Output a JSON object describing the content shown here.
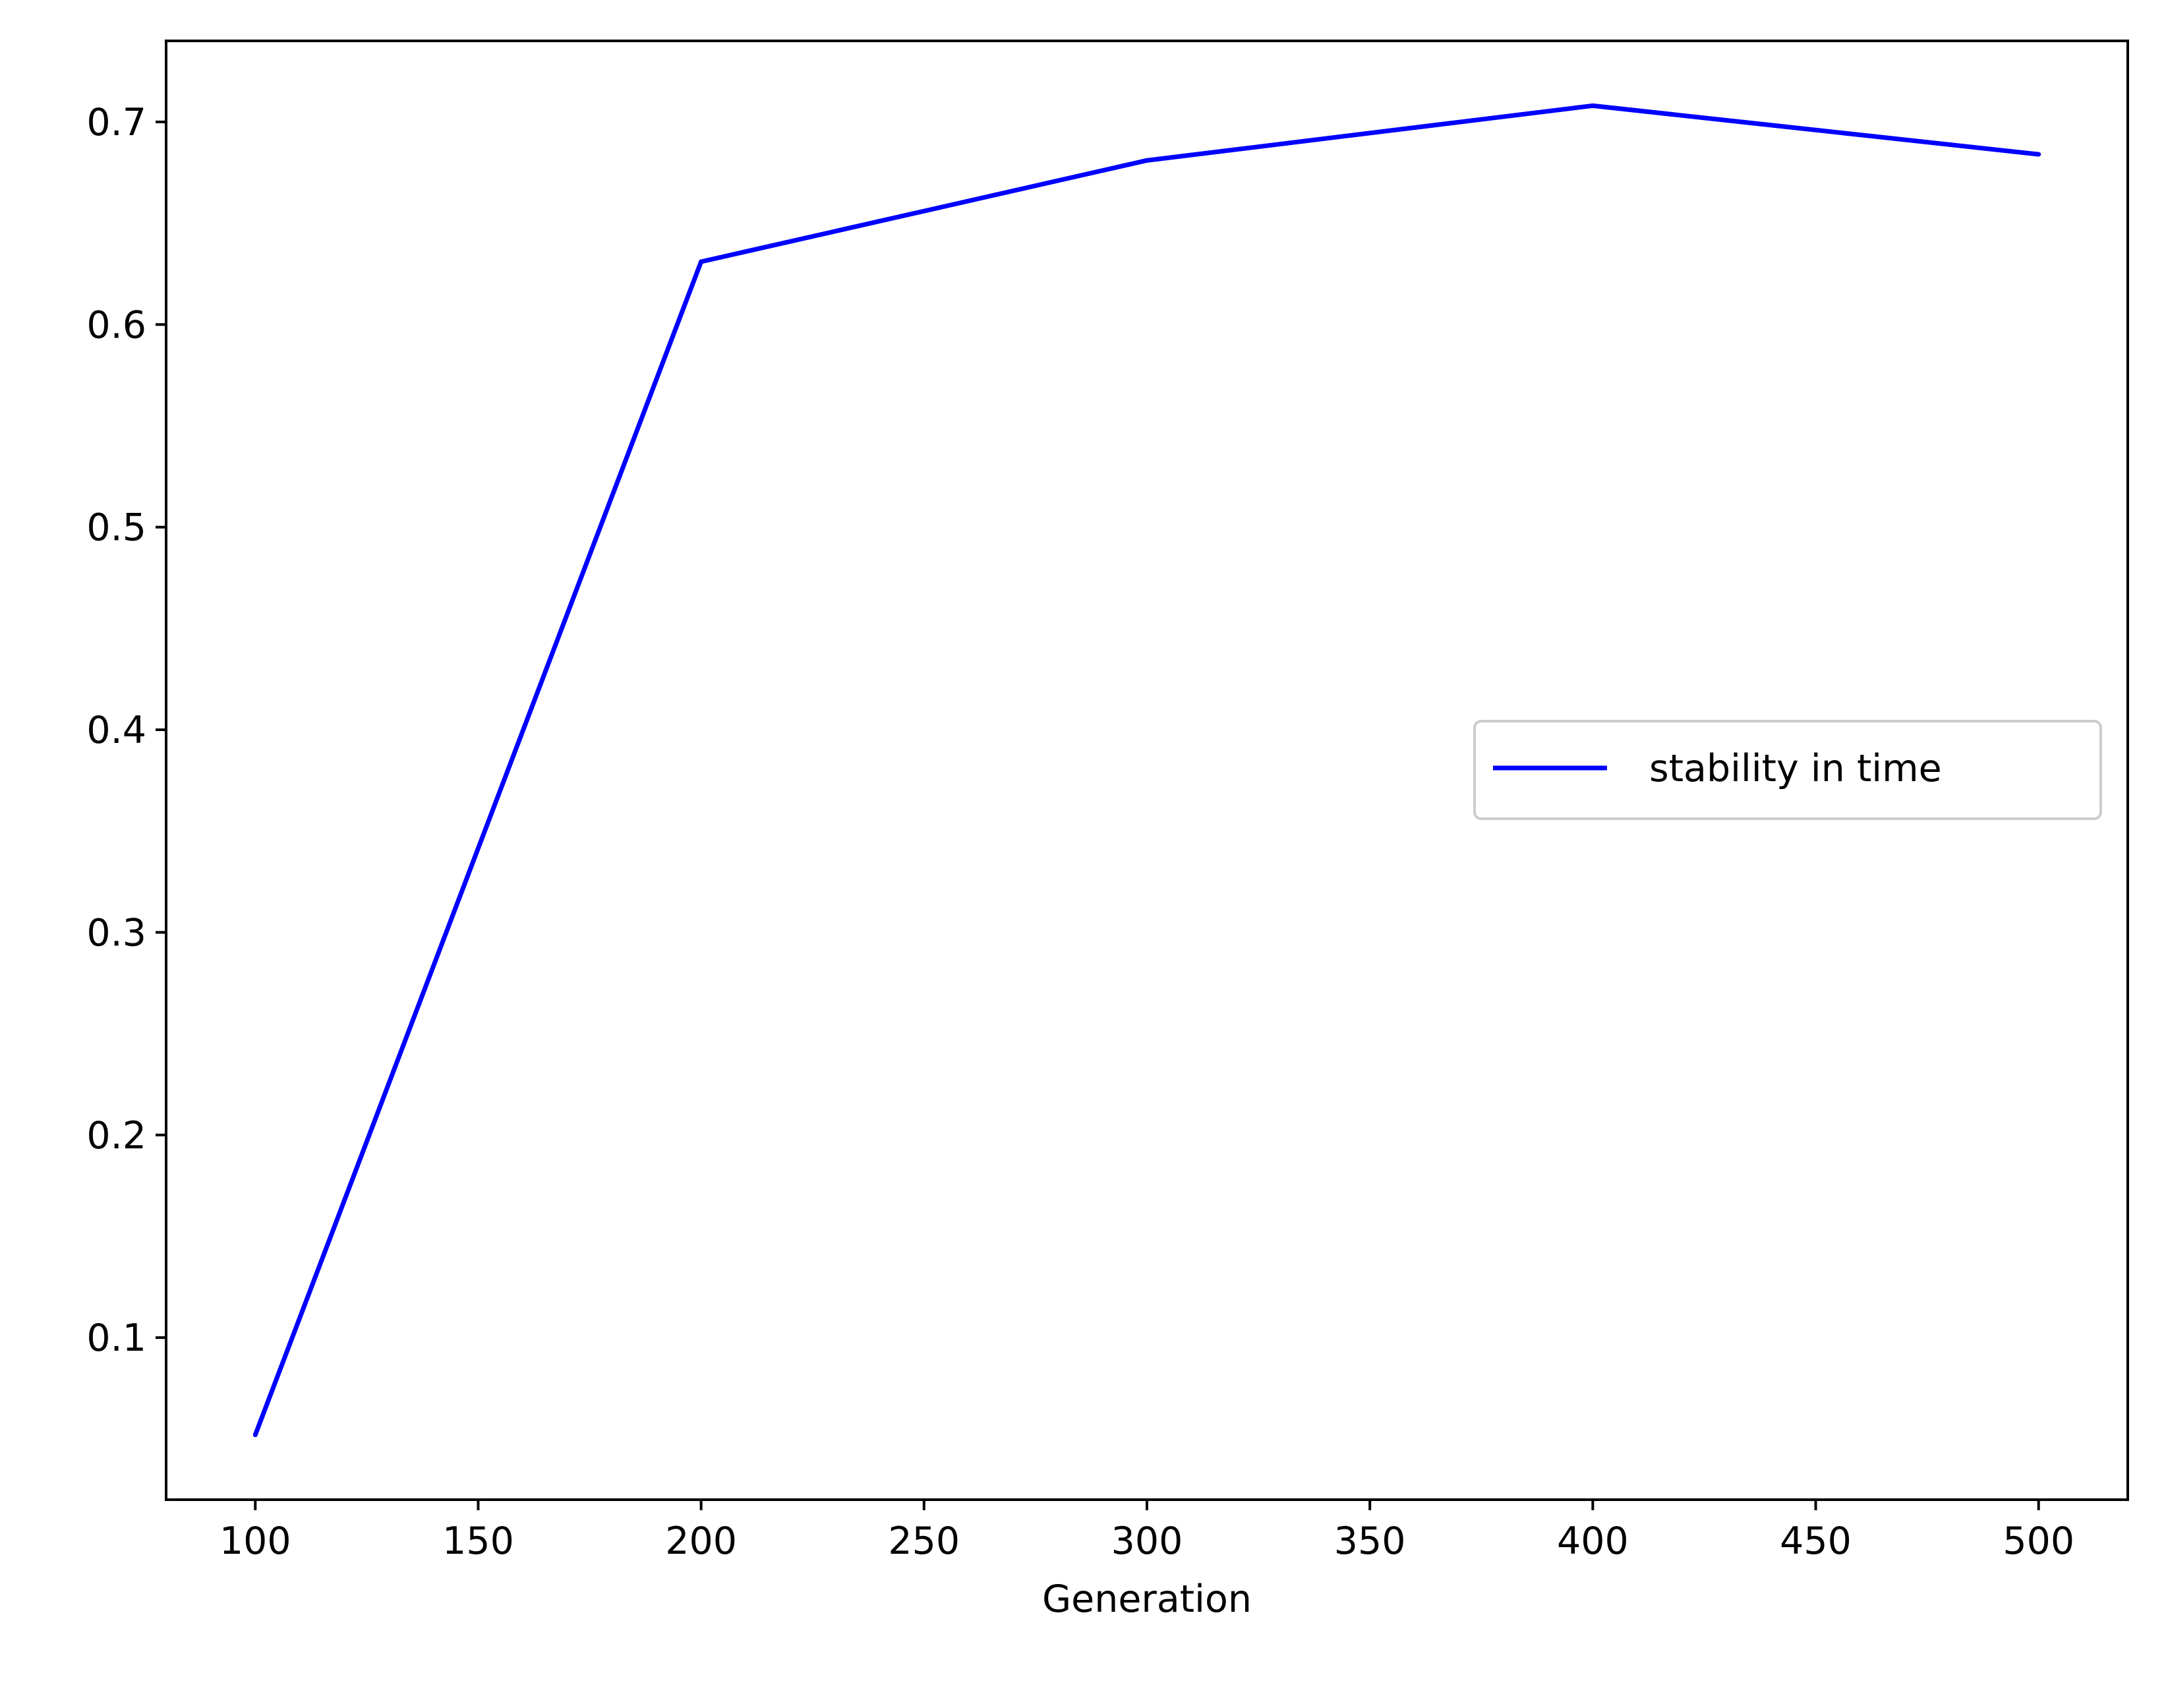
{
  "chart_data": {
    "type": "line",
    "title": "",
    "xlabel": "Generation",
    "ylabel": "",
    "xlim": [
      80,
      520
    ],
    "ylim": [
      0.02,
      0.74
    ],
    "x_ticks": [
      100,
      150,
      200,
      250,
      300,
      350,
      400,
      450,
      500
    ],
    "x_tick_labels": [
      "100",
      "150",
      "200",
      "250",
      "300",
      "350",
      "400",
      "450",
      "500"
    ],
    "y_ticks": [
      0.1,
      0.2,
      0.3,
      0.4,
      0.5,
      0.6,
      0.7
    ],
    "y_tick_labels": [
      "0.1",
      "0.2",
      "0.3",
      "0.4",
      "0.5",
      "0.6",
      "0.7"
    ],
    "grid": false,
    "legend_position": "center-right",
    "series": [
      {
        "name": "stability in time",
        "color": "#0000ff",
        "x": [
          100,
          200,
          300,
          400,
          500
        ],
        "y": [
          0.052,
          0.631,
          0.681,
          0.708,
          0.684
        ]
      }
    ]
  }
}
